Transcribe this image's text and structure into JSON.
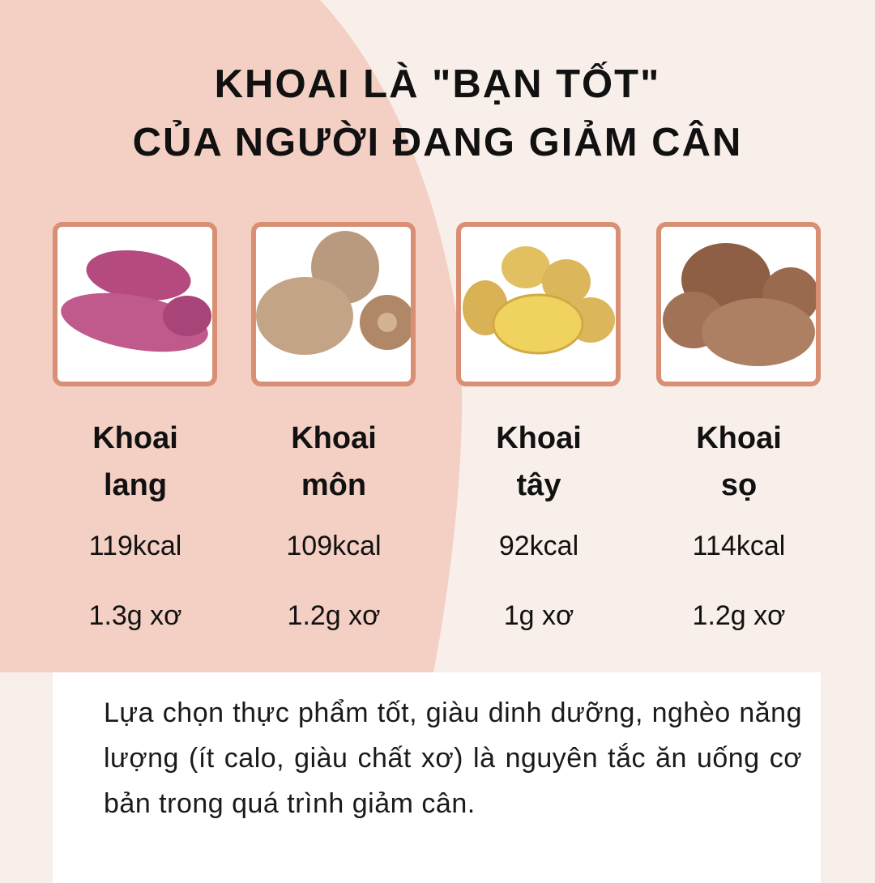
{
  "title": {
    "line1": "KHOAI LÀ \"BẠN TỐT\"",
    "line2": "CỦA NGƯỜI ĐANG GIẢM CÂN"
  },
  "colors": {
    "pink": "#f4d0c4",
    "cream": "#f9efea",
    "frame": "#d98f74"
  },
  "items": [
    {
      "name1": "Khoai",
      "name2": "lang",
      "kcal": "119kcal",
      "fiber": "1.3g xơ",
      "image": "purple-sweet-potato"
    },
    {
      "name1": "Khoai",
      "name2": "môn",
      "kcal": "109kcal",
      "fiber": "1.2g xơ",
      "image": "taro"
    },
    {
      "name1": "Khoai",
      "name2": "tây",
      "kcal": "92kcal",
      "fiber": "1g xơ",
      "image": "potato"
    },
    {
      "name1": "Khoai",
      "name2": "sọ",
      "kcal": "114kcal",
      "fiber": "1.2g xơ",
      "image": "eddoe"
    }
  ],
  "note": "Lựa chọn thực phẩm tốt, giàu dinh dưỡng, nghèo năng lượng (ít calo, giàu chất xơ) là nguyên tắc ăn uống cơ bản trong quá trình giảm cân."
}
